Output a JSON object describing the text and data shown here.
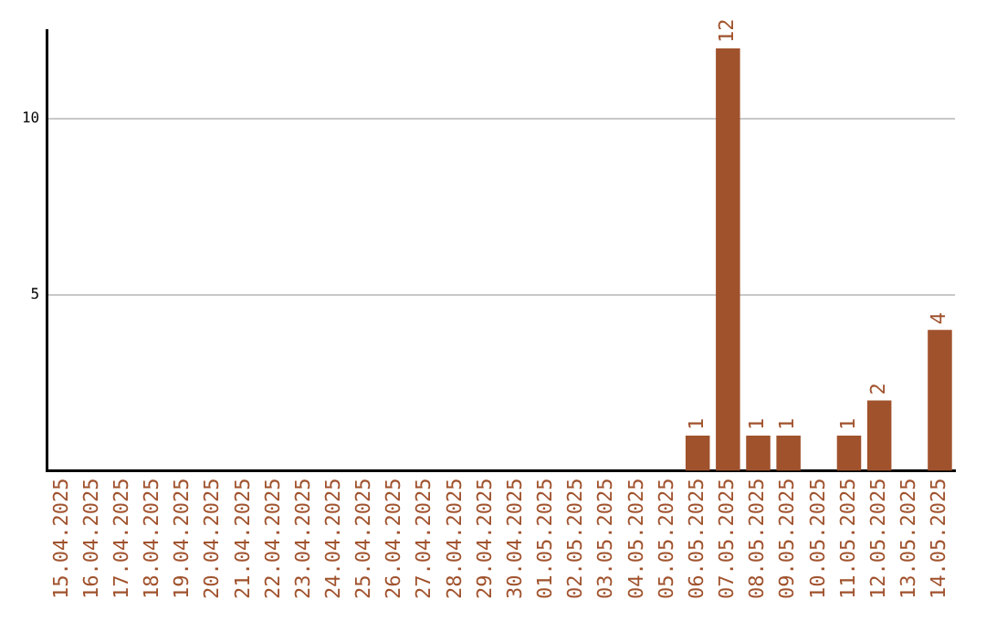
{
  "chart_data": {
    "type": "bar",
    "categories": [
      "15.04.2025",
      "16.04.2025",
      "17.04.2025",
      "18.04.2025",
      "19.04.2025",
      "20.04.2025",
      "21.04.2025",
      "22.04.2025",
      "23.04.2025",
      "24.04.2025",
      "25.04.2025",
      "26.04.2025",
      "27.04.2025",
      "28.04.2025",
      "29.04.2025",
      "30.04.2025",
      "01.05.2025",
      "02.05.2025",
      "03.05.2025",
      "04.05.2025",
      "05.05.2025",
      "06.05.2025",
      "07.05.2025",
      "08.05.2025",
      "09.05.2025",
      "10.05.2025",
      "11.05.2025",
      "12.05.2025",
      "13.05.2025",
      "14.05.2025"
    ],
    "values": [
      0,
      0,
      0,
      0,
      0,
      0,
      0,
      0,
      0,
      0,
      0,
      0,
      0,
      0,
      0,
      0,
      0,
      0,
      0,
      0,
      0,
      1,
      12,
      1,
      1,
      0,
      1,
      2,
      0,
      4
    ],
    "value_labels": [
      null,
      null,
      null,
      null,
      null,
      null,
      null,
      null,
      null,
      null,
      null,
      null,
      null,
      null,
      null,
      null,
      null,
      null,
      null,
      null,
      null,
      "1",
      "12",
      "1",
      "1",
      null,
      "1",
      "2",
      null,
      "4"
    ],
    "color": "#a0522d",
    "ylim": [
      0,
      12.5
    ],
    "yticks": [
      5,
      10
    ],
    "grid": "y",
    "legend": false
  }
}
